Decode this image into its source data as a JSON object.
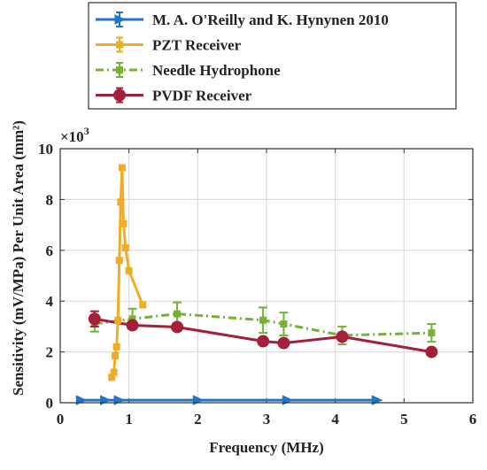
{
  "chart_data": {
    "type": "line",
    "xlabel": "Frequency (MHz)",
    "ylabel": "Sensitivity (mV/MPa) Per Unit Area (mm²)",
    "y_exponent_label": "×10³",
    "xlim": [
      0,
      6
    ],
    "ylim": [
      0,
      10
    ],
    "y_scale_factor": 1000,
    "grid": true,
    "legend_position": "top-left",
    "x_ticks": [
      0,
      1,
      2,
      3,
      4,
      5,
      6
    ],
    "y_ticks": [
      0,
      2,
      4,
      6,
      8,
      10
    ],
    "series": [
      {
        "name": "M. A. O'Reilly and K. Hynynen 2010",
        "color": "#1f77c4",
        "line_style": "solid",
        "marker": "triangle-right",
        "x": [
          0.3,
          0.65,
          0.85,
          2.0,
          3.3,
          4.6
        ],
        "y": [
          0.1,
          0.1,
          0.1,
          0.1,
          0.1,
          0.1
        ],
        "err": [
          0,
          0,
          0,
          0,
          0,
          0
        ]
      },
      {
        "name": "PZT Receiver",
        "color": "#f0ac24",
        "line_style": "solid",
        "marker": "square",
        "x": [
          0.75,
          0.78,
          0.8,
          0.82,
          0.84,
          0.86,
          0.88,
          0.9,
          0.92,
          0.95,
          1.0,
          1.2
        ],
        "y": [
          1.0,
          1.2,
          1.85,
          2.2,
          3.25,
          5.6,
          7.9,
          9.25,
          7.05,
          6.1,
          5.2,
          3.85
        ],
        "err": [
          0,
          0,
          0,
          0,
          0,
          0,
          0,
          0,
          0,
          0,
          0,
          0
        ]
      },
      {
        "name": "Needle Hydrophone",
        "color": "#76b035",
        "line_style": "dashdot",
        "marker": "square",
        "x": [
          0.5,
          1.05,
          1.7,
          2.95,
          3.25,
          4.1,
          5.4
        ],
        "y": [
          3.1,
          3.3,
          3.5,
          3.25,
          3.1,
          2.65,
          2.75
        ],
        "err": [
          0.3,
          0.4,
          0.45,
          0.5,
          0.45,
          0.35,
          0.35
        ]
      },
      {
        "name": "PVDF Receiver",
        "color": "#a31f3a",
        "line_style": "solid",
        "marker": "circle",
        "x": [
          0.5,
          1.05,
          1.7,
          2.95,
          3.25,
          4.1,
          5.4
        ],
        "y": [
          3.3,
          3.05,
          2.98,
          2.42,
          2.35,
          2.6,
          2.0
        ],
        "err": [
          0.3,
          0,
          0,
          0,
          0,
          0,
          0
        ]
      }
    ]
  }
}
